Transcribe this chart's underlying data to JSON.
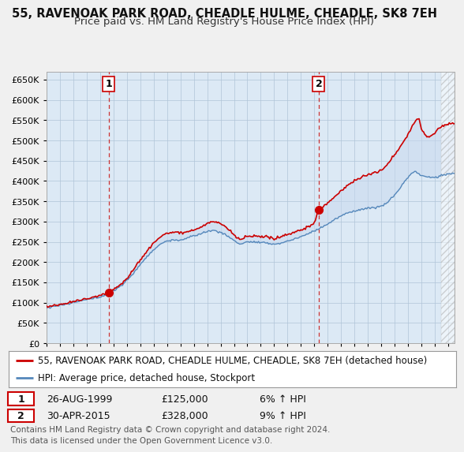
{
  "title": "55, RAVENOAK PARK ROAD, CHEADLE HULME, CHEADLE, SK8 7EH",
  "subtitle": "Price paid vs. HM Land Registry's House Price Index (HPI)",
  "ylim": [
    0,
    670000
  ],
  "yticks": [
    0,
    50000,
    100000,
    150000,
    200000,
    250000,
    300000,
    350000,
    400000,
    450000,
    500000,
    550000,
    600000,
    650000
  ],
  "xlim_start": 1995.0,
  "xlim_end": 2025.5,
  "background_color": "#f0f0f0",
  "plot_bg_color": "#dce9f5",
  "grid_color": "#b0c4d8",
  "red_line_color": "#cc0000",
  "blue_line_color": "#5588bb",
  "sale1_year": 1999.65,
  "sale1_price": 125000,
  "sale1_label": "1",
  "sale1_date": "26-AUG-1999",
  "sale1_hpi": "6% ↑ HPI",
  "sale2_year": 2015.33,
  "sale2_price": 328000,
  "sale2_label": "2",
  "sale2_date": "30-APR-2015",
  "sale2_hpi": "9% ↑ HPI",
  "legend_line1": "55, RAVENOAK PARK ROAD, CHEADLE HULME, CHEADLE, SK8 7EH (detached house)",
  "legend_line2": "HPI: Average price, detached house, Stockport",
  "footer": "Contains HM Land Registry data © Crown copyright and database right 2024.\nThis data is licensed under the Open Government Licence v3.0.",
  "title_fontsize": 10.5,
  "subtitle_fontsize": 9.5,
  "tick_fontsize": 8,
  "legend_fontsize": 8.5,
  "footer_fontsize": 7.5,
  "hatch_start": 2024.5
}
